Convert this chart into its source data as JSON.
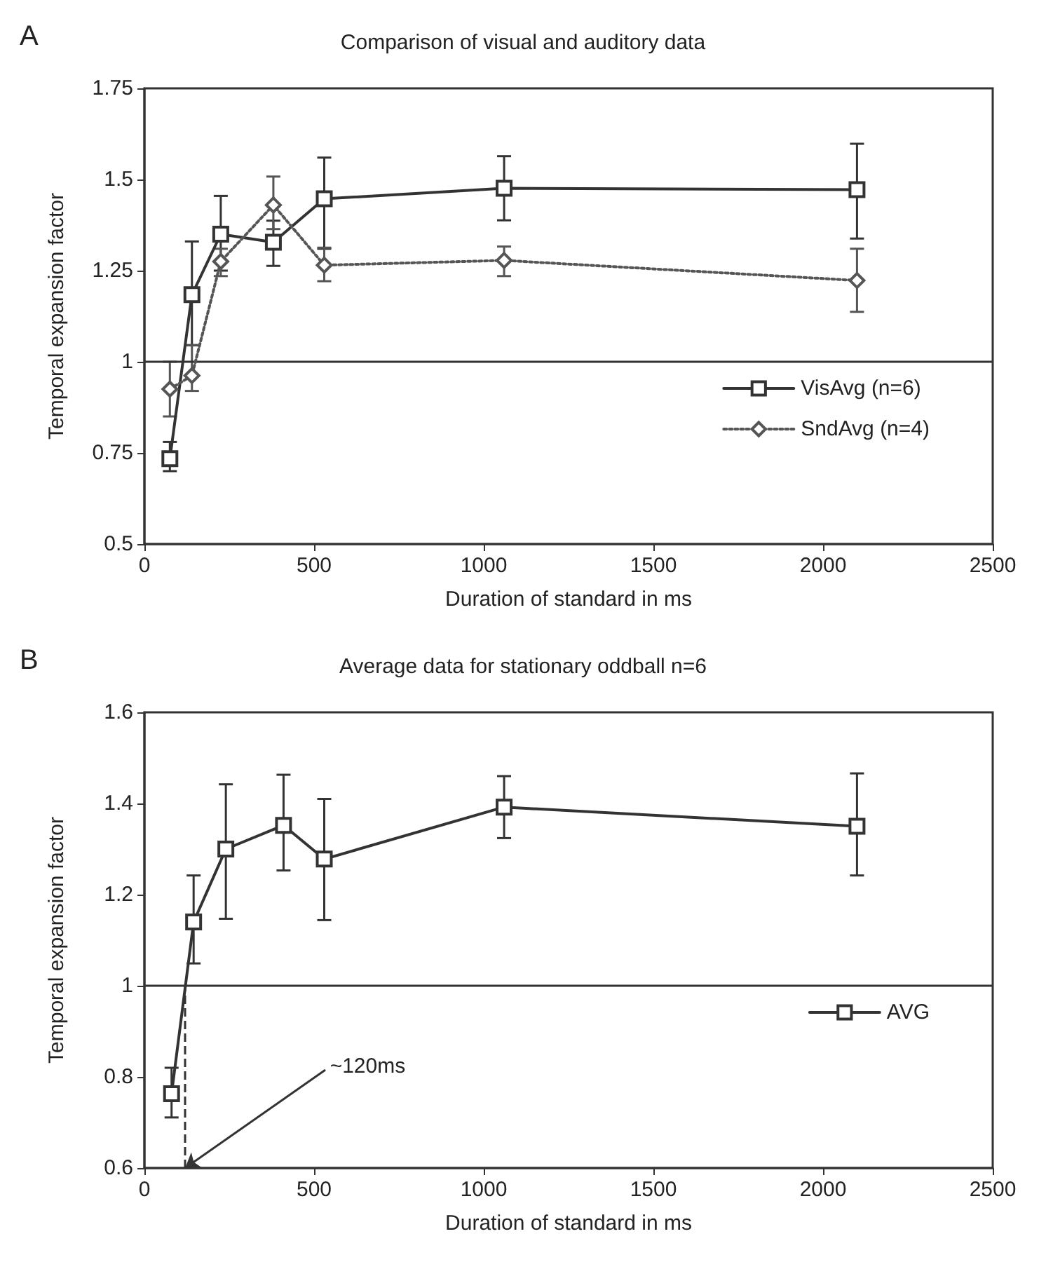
{
  "chart_data": [
    {
      "type": "line",
      "title": "Comparison of visual and auditory data",
      "xlabel": "Duration of standard in ms",
      "ylabel": "Temporal expansion factor",
      "annotations": [
        "A"
      ],
      "xlim": [
        0,
        2500
      ],
      "xticks": [
        0,
        500,
        1000,
        1500,
        2000,
        2500
      ],
      "ylim": [
        0.5,
        1.75
      ],
      "yticks": [
        0.5,
        0.75,
        1,
        1.25,
        1.5,
        1.75
      ],
      "grid": false,
      "legend": "bottom right",
      "ref_lines": [
        {
          "axis": "y",
          "value": 1,
          "color": "#333333",
          "line_style": "solid"
        }
      ],
      "series": [
        {
          "name": "VisAvg (n=6)",
          "color": "#333333",
          "marker": "square",
          "line_style": "solid",
          "x": [
            75,
            140,
            225,
            380,
            530,
            1060,
            2100
          ],
          "values": [
            0.734,
            1.184,
            1.35,
            1.328,
            1.447,
            1.476,
            1.472
          ],
          "errors": [
            [
              0.7,
              0.78
            ],
            [
              1.045,
              1.33
            ],
            [
              1.25,
              1.455
            ],
            [
              1.263,
              1.387
            ],
            [
              1.31,
              1.56
            ],
            [
              1.388,
              1.564
            ],
            [
              1.338,
              1.598
            ]
          ]
        },
        {
          "name": "SndAvg (n=4)",
          "color": "#555555",
          "marker": "diamond",
          "line_style": "dotted",
          "x": [
            75,
            140,
            225,
            380,
            530,
            1060,
            2100
          ],
          "values": [
            0.925,
            0.962,
            1.275,
            1.43,
            1.265,
            1.278,
            1.223
          ],
          "errors": [
            [
              0.85,
              1.0
            ],
            [
              0.92,
              1.046
            ],
            [
              1.235,
              1.31
            ],
            [
              1.364,
              1.508
            ],
            [
              1.221,
              1.313
            ],
            [
              1.235,
              1.316
            ],
            [
              1.137,
              1.31
            ]
          ]
        }
      ]
    },
    {
      "type": "line",
      "title": "Average data for stationary oddball n=6",
      "xlabel": "Duration of standard in ms",
      "ylabel": "Temporal expansion factor",
      "annotations": [
        "B",
        {
          "text": "~120ms",
          "x": 120,
          "y": 0.6
        }
      ],
      "xlim": [
        0,
        2500
      ],
      "xticks": [
        0,
        500,
        1000,
        1500,
        2000,
        2500
      ],
      "ylim": [
        0.6,
        1.6
      ],
      "yticks": [
        0.6,
        0.8,
        1,
        1.2,
        1.4,
        1.6
      ],
      "grid": false,
      "legend": "bottom right",
      "ref_lines": [
        {
          "axis": "y",
          "value": 1,
          "color": "#333333",
          "line_style": "solid"
        },
        {
          "axis": "x",
          "value": 120,
          "color": "#333333",
          "line_style": "dashed"
        }
      ],
      "series": [
        {
          "name": "AVG",
          "color": "#333333",
          "marker": "square",
          "line_style": "solid",
          "x": [
            80,
            145,
            240,
            410,
            530,
            1060,
            2100
          ],
          "values": [
            0.763,
            1.14,
            1.3,
            1.352,
            1.278,
            1.392,
            1.35
          ],
          "errors": [
            [
              0.711,
              0.82
            ],
            [
              1.049,
              1.242
            ],
            [
              1.147,
              1.442
            ],
            [
              1.253,
              1.463
            ],
            [
              1.144,
              1.41
            ],
            [
              1.324,
              1.46
            ],
            [
              1.242,
              1.466
            ]
          ]
        }
      ]
    }
  ]
}
